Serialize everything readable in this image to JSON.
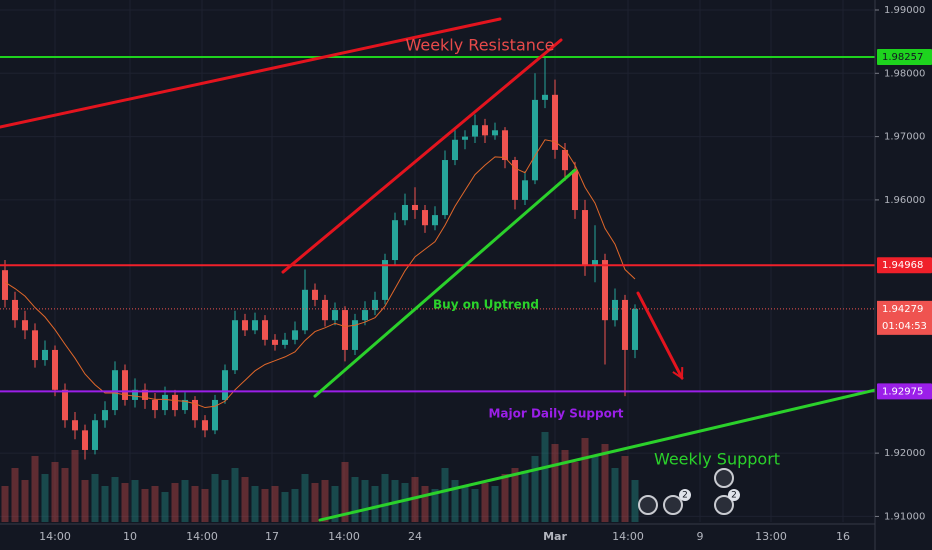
{
  "chart_data": {
    "type": "candlestick",
    "x": [
      0,
      1,
      2,
      3,
      4,
      5,
      6,
      7,
      8,
      9,
      10,
      11,
      12,
      13,
      14,
      15,
      16,
      17,
      18,
      19,
      20,
      21,
      22,
      23,
      24,
      25,
      26,
      27,
      28,
      29,
      30,
      31,
      32,
      33,
      34,
      35,
      36,
      37,
      38,
      39,
      40,
      41,
      42,
      43,
      44,
      45,
      46,
      47,
      48,
      49,
      50,
      51,
      52,
      53,
      54,
      55,
      56,
      57,
      58,
      59,
      60,
      61,
      62,
      63
    ],
    "open": [
      1.9489,
      1.9442,
      1.941,
      1.9394,
      1.9347,
      1.9363,
      1.93,
      1.9252,
      1.9236,
      1.9205,
      1.9252,
      1.9268,
      1.9331,
      1.9284,
      1.93,
      1.9284,
      1.9268,
      1.9292,
      1.9268,
      1.9284,
      1.9252,
      1.9236,
      1.9284,
      1.9331,
      1.941,
      1.9394,
      1.941,
      1.9379,
      1.9371,
      1.9379,
      1.9394,
      1.9458,
      1.9442,
      1.941,
      1.9426,
      1.9363,
      1.941,
      1.9426,
      1.9442,
      1.9505,
      1.9568,
      1.9592,
      1.9584,
      1.956,
      1.9576,
      1.9663,
      1.9695,
      1.97,
      1.9718,
      1.9702,
      1.971,
      1.9663,
      1.96,
      1.9631,
      1.9758,
      1.9766,
      1.9679,
      1.9647,
      1.9584,
      1.9497,
      1.9505,
      1.941,
      1.9442,
      1.9363
    ],
    "high": [
      1.9505,
      1.9455,
      1.9425,
      1.9405,
      1.9378,
      1.937,
      1.931,
      1.9265,
      1.9245,
      1.9262,
      1.9282,
      1.9345,
      1.934,
      1.9318,
      1.931,
      1.9295,
      1.9305,
      1.93,
      1.9296,
      1.929,
      1.926,
      1.9292,
      1.934,
      1.9425,
      1.942,
      1.9422,
      1.9418,
      1.9388,
      1.939,
      1.9408,
      1.949,
      1.9468,
      1.945,
      1.9438,
      1.9432,
      1.942,
      1.944,
      1.9455,
      1.9515,
      1.958,
      1.961,
      1.962,
      1.9592,
      1.959,
      1.9678,
      1.9712,
      1.971,
      1.9735,
      1.9728,
      1.9722,
      1.9715,
      1.9668,
      1.9645,
      1.98,
      1.9826,
      1.979,
      1.969,
      1.966,
      1.96,
      1.956,
      1.9515,
      1.946,
      1.945,
      1.9435
    ],
    "low": [
      1.943,
      1.9398,
      1.938,
      1.9335,
      1.9338,
      1.929,
      1.924,
      1.9222,
      1.919,
      1.9198,
      1.924,
      1.926,
      1.9275,
      1.9272,
      1.927,
      1.9255,
      1.926,
      1.9258,
      1.9262,
      1.924,
      1.9225,
      1.923,
      1.9278,
      1.9325,
      1.9385,
      1.9388,
      1.937,
      1.9362,
      1.9365,
      1.9372,
      1.9388,
      1.9432,
      1.94,
      1.9402,
      1.9345,
      1.9355,
      1.9402,
      1.9418,
      1.9435,
      1.9498,
      1.956,
      1.957,
      1.9548,
      1.9552,
      1.957,
      1.9655,
      1.968,
      1.969,
      1.969,
      1.9695,
      1.965,
      1.9585,
      1.9592,
      1.9625,
      1.9745,
      1.9665,
      1.963,
      1.957,
      1.948,
      1.947,
      1.934,
      1.94,
      1.929,
      1.935
    ],
    "close": [
      1.9442,
      1.941,
      1.9394,
      1.9347,
      1.9363,
      1.93,
      1.9252,
      1.9236,
      1.9205,
      1.9252,
      1.9268,
      1.9331,
      1.9284,
      1.93,
      1.9284,
      1.9268,
      1.9292,
      1.9268,
      1.9284,
      1.9252,
      1.9236,
      1.9284,
      1.9331,
      1.941,
      1.9394,
      1.941,
      1.9379,
      1.9371,
      1.9379,
      1.9394,
      1.9458,
      1.9442,
      1.941,
      1.9426,
      1.9363,
      1.941,
      1.9426,
      1.9442,
      1.9505,
      1.9568,
      1.9592,
      1.9584,
      1.956,
      1.9576,
      1.9663,
      1.9695,
      1.97,
      1.9718,
      1.9702,
      1.971,
      1.9663,
      1.96,
      1.9631,
      1.9758,
      1.9766,
      1.9679,
      1.9647,
      1.9584,
      1.9497,
      1.9505,
      1.941,
      1.9442,
      1.9363,
      1.94279
    ],
    "moving_average": {
      "color": "#e0672a",
      "values": [
        1.947,
        1.946,
        1.9448,
        1.943,
        1.9415,
        1.9395,
        1.9372,
        1.935,
        1.9325,
        1.9308,
        1.9295,
        1.9295,
        1.9292,
        1.929,
        1.9288,
        1.9285,
        1.9285,
        1.9283,
        1.9282,
        1.9278,
        1.9272,
        1.9274,
        1.9282,
        1.93,
        1.9315,
        1.933,
        1.934,
        1.9346,
        1.9352,
        1.936,
        1.9378,
        1.9392,
        1.9398,
        1.9405,
        1.94,
        1.9402,
        1.9407,
        1.9414,
        1.9432,
        1.946,
        1.9488,
        1.951,
        1.9522,
        1.9534,
        1.956,
        1.959,
        1.9615,
        1.964,
        1.9655,
        1.9668,
        1.9667,
        1.965,
        1.9643,
        1.967,
        1.9695,
        1.9692,
        1.968,
        1.9655,
        1.962,
        1.9595,
        1.9555,
        1.953,
        1.949,
        1.9475
      ]
    },
    "volume": [
      60,
      90,
      70,
      110,
      80,
      100,
      90,
      120,
      70,
      80,
      60,
      75,
      65,
      70,
      55,
      60,
      50,
      65,
      70,
      60,
      55,
      80,
      70,
      90,
      75,
      60,
      55,
      60,
      50,
      55,
      80,
      65,
      70,
      60,
      100,
      75,
      70,
      60,
      80,
      70,
      65,
      75,
      60,
      55,
      90,
      70,
      60,
      55,
      65,
      60,
      80,
      90,
      85,
      110,
      150,
      130,
      120,
      100,
      140,
      110,
      130,
      90,
      110,
      70
    ],
    "up_color": "#26a69a",
    "down_color": "#ef5350",
    "xlim": [
      -0.5,
      87
    ],
    "ylim": [
      1.90912,
      1.99158
    ],
    "xticks": [
      {
        "value": 5,
        "label": "14:00"
      },
      {
        "value": 12.5,
        "label": "10"
      },
      {
        "value": 19.7,
        "label": "14:00"
      },
      {
        "value": 26.7,
        "label": "17"
      },
      {
        "value": 33.9,
        "label": "14:00"
      },
      {
        "value": 41,
        "label": "24"
      },
      {
        "value": 55,
        "label": "Mar"
      },
      {
        "value": 62.3,
        "label": "14:00"
      },
      {
        "value": 69.5,
        "label": "9"
      },
      {
        "value": 76.6,
        "label": "13:00"
      },
      {
        "value": 83.8,
        "label": "16"
      }
    ],
    "yticks": [
      {
        "value": 1.99,
        "label": "1.99000"
      },
      {
        "value": 1.98,
        "label": "1.98000"
      },
      {
        "value": 1.97,
        "label": "1.97000"
      },
      {
        "value": 1.96,
        "label": "1.96000"
      },
      {
        "value": 1.92,
        "label": "1.92000"
      },
      {
        "value": 1.91,
        "label": "1.91000"
      }
    ],
    "grid": true,
    "price_lines": [
      {
        "value": 1.98257,
        "label": "1.98257",
        "color": "#1ed31e",
        "text_color": "#131722"
      },
      {
        "value": 1.94968,
        "label": "1.94968",
        "color": "#f0202a",
        "text_color": "#ffffff"
      },
      {
        "value": 1.92975,
        "label": "1.92975",
        "color": "#9b1fe8",
        "text_color": "#ffffff"
      }
    ],
    "last_price": {
      "value": 1.94279,
      "label": "1.94279",
      "countdown": "01:04:53",
      "color": "#ef5350"
    },
    "annotations": {
      "lines": [
        {
          "color": "#e3141e",
          "x": [
            -0.5,
            49.5
          ],
          "y": [
            1.97151,
            1.98858
          ]
        },
        {
          "color": "#e3141e",
          "x": [
            27.8,
            55.6
          ],
          "y": [
            1.9486,
            1.98526
          ]
        },
        {
          "color": "#2bd12b",
          "x": [
            31,
            57
          ],
          "y": [
            1.92901,
            1.96472
          ]
        },
        {
          "color": "#2bd12b",
          "x": [
            31.5,
            87
          ],
          "y": [
            1.90942,
            1.92996
          ]
        },
        {
          "color": "#e3141e",
          "x": [
            63.3,
            67.7
          ],
          "y": [
            1.94529,
            1.93186
          ]
        }
      ],
      "texts": [
        {
          "text": "Weekly Resistance",
          "color": "#e84a4a",
          "at": [
            47.5,
            1.9843
          ]
        },
        {
          "text": "Buy on Uptrend",
          "color": "#2bd12b",
          "at": [
            48.1,
            1.9434
          ]
        },
        {
          "text": "Major Daily Support",
          "color": "#9b1fe8",
          "at": [
            55.1,
            1.9262
          ]
        },
        {
          "text": "Weekly Support",
          "color": "#2bd12b",
          "at": [
            71.2,
            1.9189
          ]
        }
      ]
    },
    "event_badges": [
      "2",
      "2"
    ]
  }
}
